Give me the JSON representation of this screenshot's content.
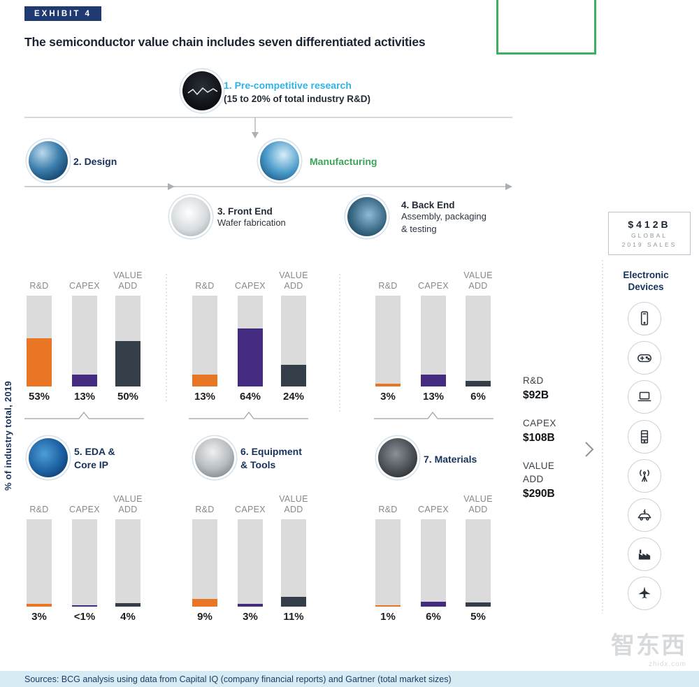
{
  "exhibit": {
    "tag": "EXHIBIT 4",
    "title": "The semiconductor value chain includes seven differentiated activities"
  },
  "flow": {
    "step1_label": "1. Pre-competitive research",
    "step1_sub": "(15 to 20% of total industry R&D)",
    "step2_label": "2. Design",
    "manufacturing_label": "Manufacturing",
    "step3_label": "3. Front End",
    "step3_sub": "Wafer fabrication",
    "step4_label": "4. Back End",
    "step4_sub1": "Assembly, packaging",
    "step4_sub2": "& testing",
    "step5_line1": "5. EDA &",
    "step5_line2": "Core IP",
    "step6_line1": "6. Equipment",
    "step6_line2": "& Tools",
    "step7_label": "7. Materials"
  },
  "axis_label": "% of industry total, 2019",
  "sales_box": {
    "value": "$412B",
    "sub1": "GLOBAL",
    "sub2": "2019 SALES"
  },
  "devices": {
    "title": "Electronic Devices",
    "icons": [
      "smartphone",
      "game-controller",
      "laptop",
      "server-rack",
      "broadcast-antenna",
      "electric-car",
      "factory",
      "fighter-jet"
    ]
  },
  "chart_data": {
    "type": "bar",
    "ylabel": "% of industry total, 2019",
    "metrics": [
      "R&D",
      "CAPEX",
      "VALUE ADD"
    ],
    "colors": {
      "R&D": "#E87625",
      "CAPEX": "#432C80",
      "VALUE ADD": "#333E48",
      "track": "#DBDBDB"
    },
    "groups": [
      {
        "activity": "2. Design",
        "values": [
          {
            "label": "53%",
            "value": 53
          },
          {
            "label": "13%",
            "value": 13
          },
          {
            "label": "50%",
            "value": 50
          }
        ]
      },
      {
        "activity": "3. Front End (Wafer fabrication)",
        "values": [
          {
            "label": "13%",
            "value": 13
          },
          {
            "label": "64%",
            "value": 64
          },
          {
            "label": "24%",
            "value": 24
          }
        ]
      },
      {
        "activity": "4. Back End (Assembly, packaging & testing)",
        "values": [
          {
            "label": "3%",
            "value": 3
          },
          {
            "label": "13%",
            "value": 13
          },
          {
            "label": "6%",
            "value": 6
          }
        ]
      },
      {
        "activity": "5. EDA & Core IP",
        "values": [
          {
            "label": "3%",
            "value": 3
          },
          {
            "label": "<1%",
            "value": 0.5
          },
          {
            "label": "4%",
            "value": 4
          }
        ]
      },
      {
        "activity": "6. Equipment & Tools",
        "values": [
          {
            "label": "9%",
            "value": 9
          },
          {
            "label": "3%",
            "value": 3
          },
          {
            "label": "11%",
            "value": 11
          }
        ]
      },
      {
        "activity": "7. Materials",
        "values": [
          {
            "label": "1%",
            "value": 1
          },
          {
            "label": "6%",
            "value": 6
          },
          {
            "label": "5%",
            "value": 5
          }
        ]
      }
    ],
    "totals": {
      "R&D": "$92B",
      "CAPEX": "$108B",
      "VALUE ADD": "$290B"
    },
    "global_2019_sales": "$412B",
    "step1_share_note": "15 to 20% of total industry R&D"
  },
  "source": "Sources: BCG analysis using data from Capital IQ (company financial reports) and Gartner (total market sizes)",
  "watermark": {
    "name": "智东西",
    "site": "zhidx.com"
  },
  "accent_colors": {
    "navy": "#16325C",
    "cyan": "#2FB3E8",
    "green": "#3AA457",
    "orange": "#E87625",
    "purple": "#432C80",
    "charcoal": "#333E48",
    "exhibit_bg": "#1E3A70",
    "source_bg": "#D7EBF5",
    "green_box": "#3CB05F"
  }
}
